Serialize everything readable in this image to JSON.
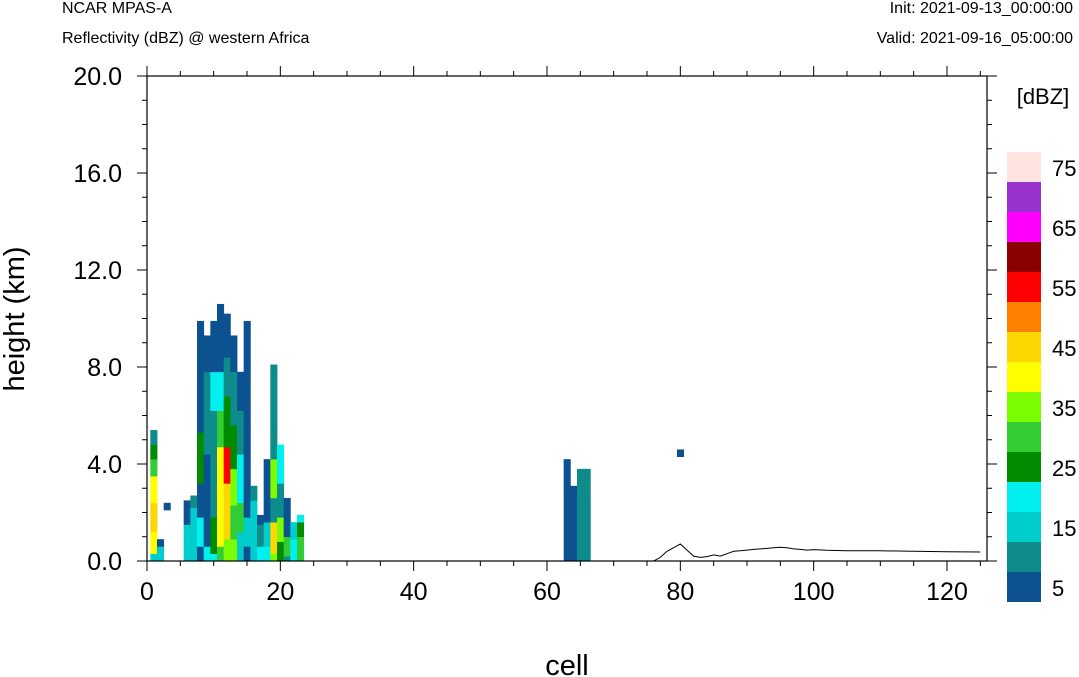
{
  "header": {
    "model": "NCAR MPAS-A",
    "field": "Reflectivity (dBZ) @ western Africa",
    "init": "Init: 2021-09-13_00:00:00",
    "valid": "Valid: 2021-09-16_05:00:00"
  },
  "chart_data": {
    "type": "heatmap",
    "title": "Reflectivity (dBZ) @ western Africa",
    "xlabel": "cell",
    "ylabel": "height (km)",
    "xlim": [
      0,
      126
    ],
    "ylim": [
      0,
      20
    ],
    "xticks": [
      0,
      20,
      40,
      60,
      80,
      100,
      120
    ],
    "xtick_labels": [
      "0",
      "20",
      "40",
      "60",
      "80",
      "100",
      "120"
    ],
    "yticks": [
      0,
      4,
      8,
      12,
      16,
      20
    ],
    "ytick_labels": [
      "0.0",
      "4.0",
      "8.0",
      "12.0",
      "16.0",
      "20.0"
    ],
    "colorbar": {
      "label": "[dBZ]",
      "levels": [
        5,
        10,
        15,
        20,
        25,
        30,
        35,
        40,
        45,
        50,
        55,
        60,
        65,
        70,
        75
      ],
      "colors": [
        "#0c5190",
        "#0e8b8b",
        "#00cccc",
        "#00f0f0",
        "#008b00",
        "#32cd32",
        "#7cfc00",
        "#ffff00",
        "#ffd700",
        "#ff7f00",
        "#ff0000",
        "#8b0000",
        "#ff00ff",
        "#9932cc",
        "#ffe4e1"
      ],
      "tick_labels": [
        "5",
        "15",
        "25",
        "35",
        "45",
        "55",
        "65",
        "75"
      ]
    },
    "cells": [
      {
        "x": 1,
        "bins": [
          [
            0,
            0.3,
            15
          ],
          [
            0.3,
            1.2,
            40
          ],
          [
            1.2,
            2.4,
            45
          ],
          [
            2.4,
            3.5,
            40
          ],
          [
            3.5,
            4.2,
            30
          ],
          [
            4.2,
            4.8,
            25
          ],
          [
            4.8,
            5.4,
            10
          ]
        ]
      },
      {
        "x": 2,
        "bins": [
          [
            0,
            0.6,
            15
          ],
          [
            0.6,
            0.9,
            5
          ]
        ]
      },
      {
        "x": 3,
        "bins": [
          [
            2.1,
            2.4,
            5
          ]
        ]
      },
      {
        "x": 6,
        "bins": [
          [
            0,
            1.5,
            15
          ],
          [
            1.5,
            2.5,
            5
          ]
        ]
      },
      {
        "x": 7,
        "bins": [
          [
            0,
            0.9,
            15
          ],
          [
            0.9,
            2.2,
            15
          ],
          [
            2.2,
            2.7,
            10
          ]
        ]
      },
      {
        "x": 8,
        "bins": [
          [
            0,
            0.6,
            5
          ],
          [
            0.6,
            1.8,
            20
          ],
          [
            1.8,
            3.2,
            5
          ],
          [
            3.2,
            5.3,
            25
          ],
          [
            5.3,
            7.8,
            5
          ],
          [
            7.8,
            9.9,
            5
          ]
        ]
      },
      {
        "x": 9,
        "bins": [
          [
            0,
            0.6,
            20
          ],
          [
            0.6,
            2.4,
            5
          ],
          [
            2.4,
            4.4,
            5
          ],
          [
            4.4,
            7.8,
            10
          ],
          [
            7.8,
            9.3,
            5
          ]
        ]
      },
      {
        "x": 10,
        "bins": [
          [
            0,
            0.3,
            20
          ],
          [
            0.3,
            1.8,
            25
          ],
          [
            1.8,
            3.8,
            10
          ],
          [
            3.8,
            6.2,
            10
          ],
          [
            6.2,
            7.8,
            20
          ],
          [
            7.8,
            9.9,
            5
          ]
        ]
      },
      {
        "x": 11,
        "bins": [
          [
            0,
            0.6,
            30
          ],
          [
            0.6,
            3.2,
            40
          ],
          [
            3.2,
            4.7,
            40
          ],
          [
            4.7,
            6.2,
            30
          ],
          [
            6.2,
            7.8,
            20
          ],
          [
            7.8,
            10.6,
            5
          ]
        ]
      },
      {
        "x": 12,
        "bins": [
          [
            0,
            0.9,
            35
          ],
          [
            0.9,
            3.2,
            45
          ],
          [
            3.2,
            4.7,
            55
          ],
          [
            4.7,
            6.8,
            25
          ],
          [
            6.8,
            8.4,
            10
          ],
          [
            8.4,
            10.2,
            5
          ]
        ]
      },
      {
        "x": 13,
        "bins": [
          [
            0,
            0.9,
            35
          ],
          [
            0.9,
            2.3,
            30
          ],
          [
            2.3,
            3.8,
            35
          ],
          [
            3.8,
            5.6,
            25
          ],
          [
            5.6,
            7.8,
            10
          ],
          [
            7.8,
            9.3,
            5
          ]
        ]
      },
      {
        "x": 14,
        "bins": [
          [
            0,
            1.2,
            15
          ],
          [
            1.2,
            2.4,
            30
          ],
          [
            2.4,
            4.4,
            20
          ],
          [
            4.4,
            6.2,
            10
          ],
          [
            6.2,
            7.8,
            5
          ]
        ]
      },
      {
        "x": 15,
        "bins": [
          [
            0,
            0.6,
            5
          ],
          [
            0.6,
            1.8,
            15
          ],
          [
            1.8,
            2.4,
            5
          ],
          [
            2.4,
            3.8,
            5
          ],
          [
            3.8,
            5.6,
            5
          ],
          [
            5.6,
            9.9,
            5
          ]
        ]
      },
      {
        "x": 16,
        "bins": [
          [
            0,
            1.0,
            15
          ],
          [
            1.0,
            2.5,
            15
          ],
          [
            2.5,
            3.1,
            10
          ]
        ]
      },
      {
        "x": 17,
        "bins": [
          [
            0,
            0.6,
            20
          ],
          [
            0.6,
            1.5,
            10
          ],
          [
            1.5,
            1.9,
            5
          ]
        ]
      },
      {
        "x": 18,
        "bins": [
          [
            0,
            0.6,
            20
          ],
          [
            0.6,
            1.6,
            15
          ],
          [
            1.6,
            2.6,
            5
          ],
          [
            2.6,
            4.2,
            5
          ]
        ]
      },
      {
        "x": 19,
        "bins": [
          [
            0,
            0.3,
            35
          ],
          [
            0.3,
            1.6,
            45
          ],
          [
            1.6,
            2.6,
            10
          ],
          [
            2.6,
            4.2,
            35
          ],
          [
            4.2,
            5.4,
            10
          ],
          [
            5.4,
            8.1,
            10
          ]
        ]
      },
      {
        "x": 20,
        "bins": [
          [
            0,
            0.8,
            25
          ],
          [
            0.8,
            1.8,
            35
          ],
          [
            1.8,
            3.2,
            10
          ],
          [
            3.2,
            4.8,
            20
          ]
        ]
      },
      {
        "x": 21,
        "bins": [
          [
            0,
            0.2,
            10
          ],
          [
            0.2,
            1.0,
            30
          ],
          [
            1.0,
            2.6,
            5
          ]
        ]
      },
      {
        "x": 22,
        "bins": [
          [
            0,
            0.9,
            20
          ],
          [
            0.9,
            1.6,
            15
          ]
        ]
      },
      {
        "x": 23,
        "bins": [
          [
            0,
            1.0,
            30
          ],
          [
            1.0,
            1.6,
            25
          ],
          [
            1.6,
            1.9,
            20
          ]
        ]
      },
      {
        "x": 63,
        "bins": [
          [
            0,
            4.2,
            5
          ]
        ]
      },
      {
        "x": 64,
        "bins": [
          [
            0,
            3.1,
            5
          ]
        ]
      },
      {
        "x": 65,
        "bins": [
          [
            0,
            3.8,
            10
          ]
        ]
      },
      {
        "x": 66,
        "bins": [
          [
            0,
            3.8,
            10
          ]
        ]
      },
      {
        "x": 80,
        "bins": [
          [
            4.3,
            4.6,
            5
          ]
        ]
      }
    ],
    "terrain": {
      "x": [
        0,
        76,
        77,
        78,
        79,
        80,
        81,
        82,
        83,
        84,
        85,
        86,
        87,
        88,
        89,
        90,
        91,
        92,
        93,
        94,
        95,
        96,
        97,
        98,
        99,
        100,
        102,
        105,
        110,
        115,
        120,
        125
      ],
      "y": [
        0,
        0,
        0.15,
        0.4,
        0.55,
        0.7,
        0.45,
        0.2,
        0.15,
        0.18,
        0.25,
        0.2,
        0.3,
        0.4,
        0.42,
        0.45,
        0.48,
        0.5,
        0.52,
        0.55,
        0.57,
        0.55,
        0.5,
        0.48,
        0.45,
        0.47,
        0.44,
        0.42,
        0.42,
        0.4,
        0.38,
        0.37
      ]
    }
  }
}
